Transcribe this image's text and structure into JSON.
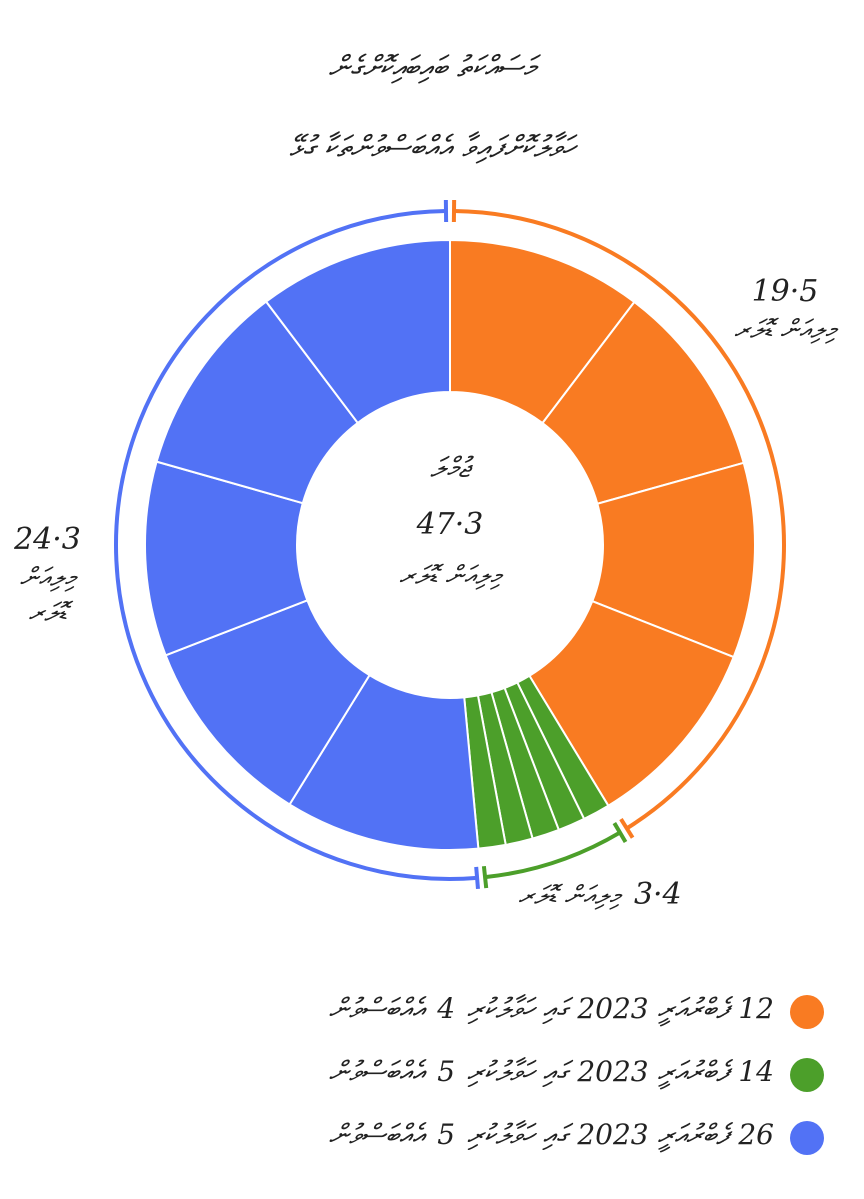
{
  "chart_data": {
    "type": "donut",
    "title": "މަސައްކަތު ބައިބައިކޮށްގެން",
    "subtitle": "ހަވާލުކޮށްފައިވާ އެއްބަސްވުންތަކާ ގުޅޭ",
    "center_title": "ޖުމްލަ",
    "center_value": "47·3",
    "unit": "މިލިއަން ޑޮލަރ",
    "series": [
      {
        "name": "12 ފެބްރުއަރީ 2023 ގައި ހަވާލުކުރި",
        "count": 4,
        "noun": "އެއްބަސްވުން",
        "color": "#f97b22",
        "values": [
          19.5
        ],
        "value_labels": [
          "19·5"
        ]
      },
      {
        "name": "14 ފެބްރުއަރީ 2023 ގައި ހަވާލުކުރި",
        "count": 5,
        "noun": "އެއްބަސްވުން",
        "color": "#4c9f2a",
        "values": [
          3.4
        ],
        "value_labels": [
          "3·4"
        ]
      },
      {
        "name": "26 ފެބްރުއަރީ 2023 ގައި ހަވާލުކުރި",
        "count": 5,
        "noun": "އެއްބަސްވުން",
        "color": "#5272f5",
        "values": [
          24.3
        ],
        "value_labels": [
          "24·3"
        ]
      }
    ]
  }
}
